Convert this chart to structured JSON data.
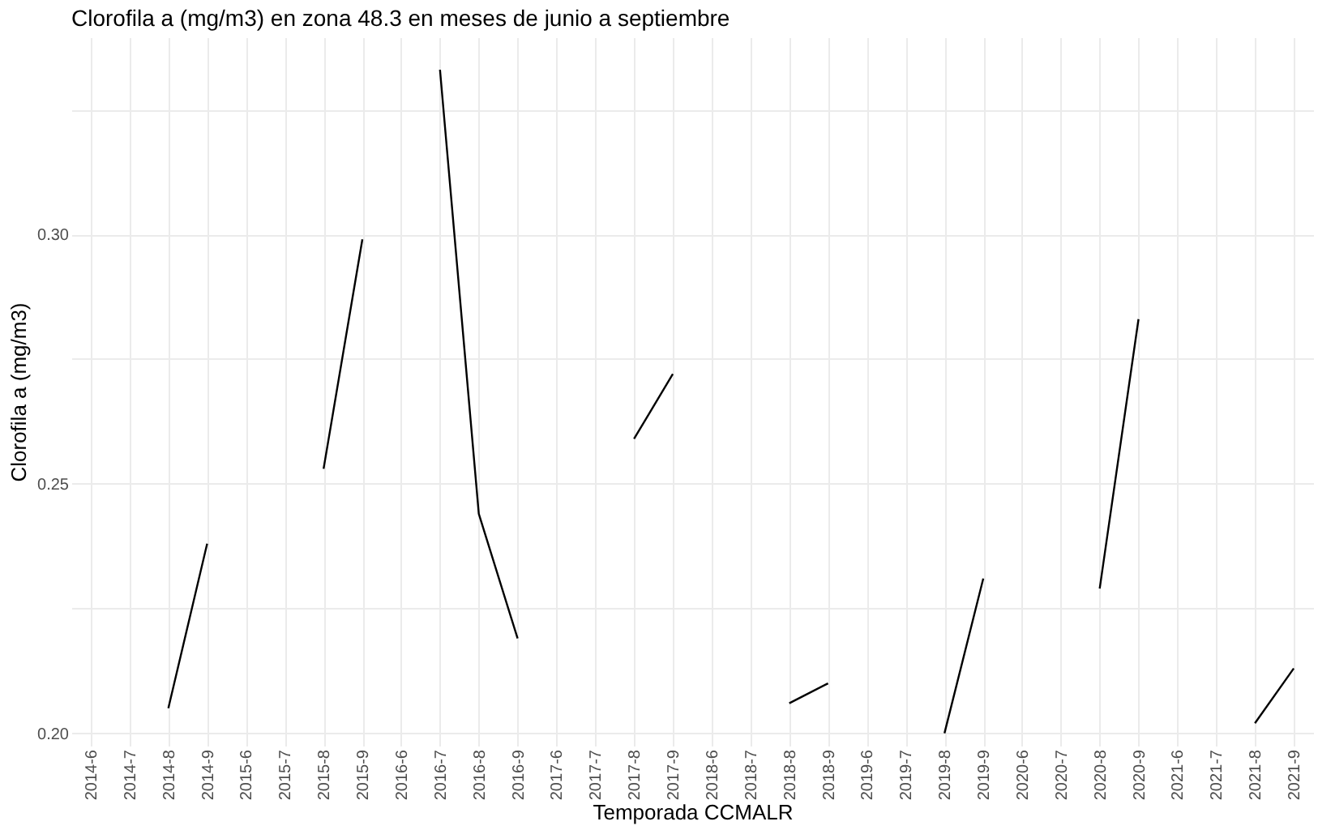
{
  "chart_data": {
    "type": "line",
    "title": "Clorofila a (mg/m3) en zona 48.3 en meses de junio a septiembre",
    "xlabel": "Temporada CCMALR",
    "ylabel": "Clorofila a (mg/m3)",
    "categories": [
      "2014-6",
      "2014-7",
      "2014-8",
      "2014-9",
      "2015-6",
      "2015-7",
      "2015-8",
      "2015-9",
      "2016-6",
      "2016-7",
      "2016-8",
      "2016-9",
      "2017-6",
      "2017-7",
      "2017-8",
      "2017-9",
      "2018-6",
      "2018-7",
      "2018-8",
      "2018-9",
      "2019-6",
      "2019-7",
      "2019-8",
      "2019-9",
      "2020-6",
      "2020-7",
      "2020-8",
      "2020-9",
      "2021-6",
      "2021-7",
      "2021-8",
      "2021-9"
    ],
    "series": [
      {
        "color": "#000000",
        "values": [
          null,
          null,
          0.205,
          0.238,
          null,
          null,
          0.253,
          0.299,
          null,
          0.333,
          0.244,
          0.219,
          null,
          null,
          0.259,
          0.272,
          null,
          null,
          0.206,
          0.21,
          null,
          null,
          0.2,
          0.231,
          null,
          null,
          0.229,
          0.283,
          null,
          null,
          0.202,
          0.213
        ]
      }
    ],
    "ylim": [
      0.1975,
      0.3395
    ],
    "yticks": [
      {
        "value": 0.2,
        "label": "0.20"
      },
      {
        "value": 0.225,
        "label": null
      },
      0.25,
      {
        "value": 0.275,
        "label": null
      },
      {
        "value": 0.3,
        "label": "0.30"
      },
      {
        "value": 0.325,
        "label": null
      }
    ],
    "grid": true,
    "legend": false,
    "marker": "none",
    "line_style": "solid"
  }
}
